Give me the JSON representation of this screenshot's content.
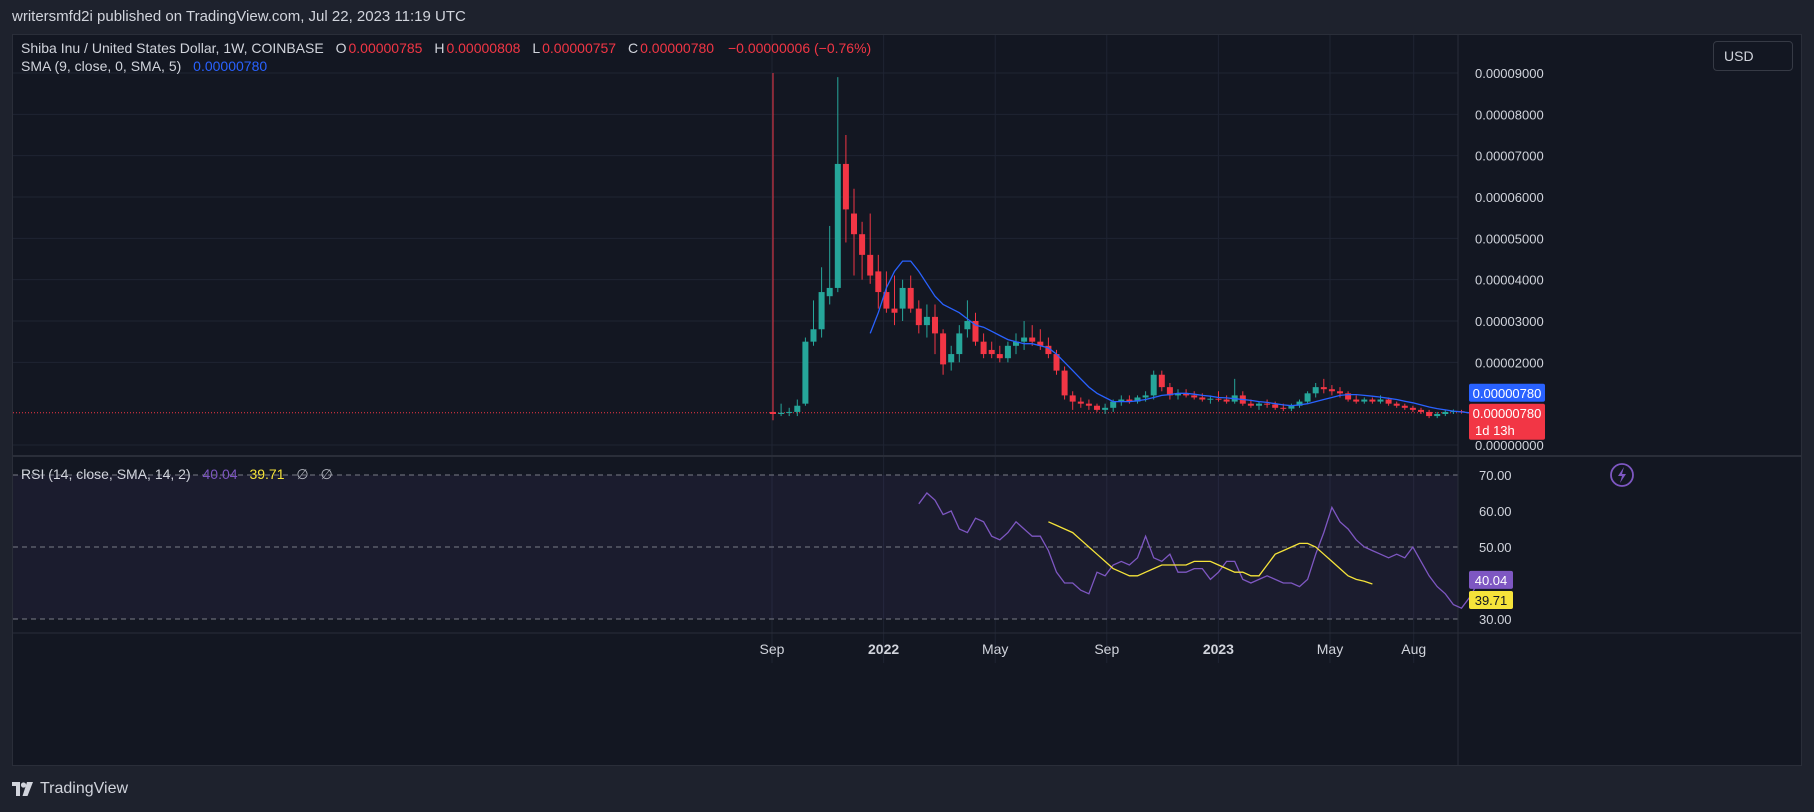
{
  "publisher": "writersmfd2i published on TradingView.com, Jul 22, 2023 11:19 UTC",
  "currency": "USD",
  "footer_brand": "TradingView",
  "colors": {
    "up": "#26a69a",
    "down": "#f23645",
    "sma": "#2962ff",
    "rsi": "#7e57c2",
    "rsi_ma": "#f5e33a",
    "price_line": "#f23645"
  },
  "legend": {
    "symbol": "Shiba Inu / United States Dollar, 1W, COINBASE",
    "o_label": "O",
    "o_value": "0.00000785",
    "h_label": "H",
    "h_value": "0.00000808",
    "l_label": "L",
    "l_value": "0.00000757",
    "c_label": "C",
    "c_value": "0.00000780",
    "change": "−0.00000006 (−0.76%)",
    "sma_label": "SMA (9, close, 0, SMA, 5)",
    "sma_value": "0.00000780",
    "rsi_label": "RSI (14, close, SMA, 14, 2)",
    "rsi_value": "40.04",
    "rsi_ma_value": "39.71",
    "null1": "∅",
    "null2": "∅"
  },
  "badges": {
    "sma_price": "0.00000780",
    "last_price": "0.00000780",
    "countdown": "1d 13h",
    "rsi": "40.04",
    "rsi_ma": "39.71"
  },
  "chart_data": [
    {
      "type": "candlestick",
      "title": "Shiba Inu / United States Dollar, 1W, COINBASE",
      "price_axis_ticks": [
        "0.00009000",
        "0.00008000",
        "0.00007000",
        "0.00006000",
        "0.00005000",
        "0.00004000",
        "0.00003000",
        "0.00002000",
        "0.00000000"
      ],
      "ylim": [
        0,
        9e-05
      ],
      "time_axis_ticks": [
        "Sep",
        "2022",
        "May",
        "Sep",
        "2023",
        "May",
        "Aug"
      ],
      "time_axis_months": [
        8,
        12,
        16,
        20,
        24,
        28,
        31
      ],
      "candles_ohlc_e5": [
        [
          0.8,
          9.0,
          0.6,
          0.75
        ],
        [
          0.75,
          1.0,
          0.7,
          0.78
        ],
        [
          0.78,
          0.9,
          0.7,
          0.8
        ],
        [
          0.8,
          1.1,
          0.7,
          0.95
        ],
        [
          1.0,
          2.6,
          0.95,
          2.5
        ],
        [
          2.5,
          3.5,
          2.4,
          2.8
        ],
        [
          2.8,
          4.3,
          2.6,
          3.7
        ],
        [
          3.6,
          5.3,
          3.4,
          3.8
        ],
        [
          3.8,
          8.9,
          3.7,
          6.8
        ],
        [
          6.8,
          7.5,
          4.9,
          5.7
        ],
        [
          5.6,
          6.2,
          4.1,
          5.1
        ],
        [
          5.1,
          5.4,
          4.0,
          4.6
        ],
        [
          4.6,
          5.6,
          3.9,
          4.1
        ],
        [
          4.2,
          4.6,
          3.3,
          3.7
        ],
        [
          3.7,
          4.2,
          3.2,
          3.3
        ],
        [
          3.3,
          4.1,
          2.9,
          3.2
        ],
        [
          3.3,
          4.0,
          3.0,
          3.8
        ],
        [
          3.8,
          4.1,
          3.2,
          3.3
        ],
        [
          3.3,
          3.5,
          2.7,
          2.9
        ],
        [
          2.9,
          3.4,
          2.6,
          3.1
        ],
        [
          3.1,
          3.4,
          2.2,
          2.7
        ],
        [
          2.7,
          2.8,
          1.7,
          1.95
        ],
        [
          2.0,
          2.4,
          1.8,
          2.2
        ],
        [
          2.2,
          2.9,
          2.0,
          2.7
        ],
        [
          2.8,
          3.5,
          2.6,
          3.0
        ],
        [
          3.0,
          3.2,
          2.4,
          2.5
        ],
        [
          2.5,
          2.7,
          2.1,
          2.2
        ],
        [
          2.3,
          2.5,
          2.1,
          2.2
        ],
        [
          2.2,
          2.4,
          2.0,
          2.1
        ],
        [
          2.1,
          2.5,
          2.0,
          2.4
        ],
        [
          2.4,
          2.7,
          2.2,
          2.5
        ],
        [
          2.5,
          3.0,
          2.3,
          2.6
        ],
        [
          2.6,
          2.9,
          2.4,
          2.5
        ],
        [
          2.5,
          2.8,
          2.3,
          2.4
        ],
        [
          2.4,
          2.6,
          2.1,
          2.2
        ],
        [
          2.2,
          2.3,
          1.7,
          1.8
        ],
        [
          1.8,
          1.9,
          1.1,
          1.2
        ],
        [
          1.2,
          1.3,
          0.85,
          1.05
        ],
        [
          1.05,
          1.15,
          0.9,
          1.0
        ],
        [
          1.0,
          1.1,
          0.85,
          0.95
        ],
        [
          0.95,
          1.0,
          0.8,
          0.85
        ],
        [
          0.85,
          1.0,
          0.75,
          0.9
        ],
        [
          0.9,
          1.1,
          0.8,
          1.05
        ],
        [
          1.05,
          1.2,
          0.95,
          1.1
        ],
        [
          1.1,
          1.2,
          1.0,
          1.05
        ],
        [
          1.05,
          1.2,
          1.0,
          1.15
        ],
        [
          1.15,
          1.3,
          1.05,
          1.2
        ],
        [
          1.2,
          1.8,
          1.1,
          1.7
        ],
        [
          1.7,
          1.8,
          1.3,
          1.4
        ],
        [
          1.4,
          1.5,
          1.1,
          1.2
        ],
        [
          1.2,
          1.35,
          1.1,
          1.25
        ],
        [
          1.25,
          1.35,
          1.15,
          1.2
        ],
        [
          1.2,
          1.3,
          1.1,
          1.15
        ],
        [
          1.15,
          1.25,
          1.05,
          1.1
        ],
        [
          1.1,
          1.2,
          1.0,
          1.12
        ],
        [
          1.12,
          1.3,
          1.05,
          1.1
        ],
        [
          1.1,
          1.2,
          1.0,
          1.05
        ],
        [
          1.05,
          1.6,
          1.0,
          1.2
        ],
        [
          1.2,
          1.3,
          0.95,
          1.0
        ],
        [
          1.0,
          1.1,
          0.9,
          0.95
        ],
        [
          0.95,
          1.05,
          0.85,
          1.0
        ],
        [
          1.0,
          1.1,
          0.9,
          0.98
        ],
        [
          0.98,
          1.05,
          0.85,
          0.9
        ],
        [
          0.9,
          1.0,
          0.82,
          0.88
        ],
        [
          0.88,
          1.0,
          0.82,
          0.95
        ],
        [
          0.95,
          1.1,
          0.9,
          1.05
        ],
        [
          1.05,
          1.3,
          1.0,
          1.25
        ],
        [
          1.25,
          1.5,
          1.15,
          1.4
        ],
        [
          1.4,
          1.6,
          1.25,
          1.35
        ],
        [
          1.35,
          1.45,
          1.2,
          1.3
        ],
        [
          1.3,
          1.4,
          1.15,
          1.25
        ],
        [
          1.25,
          1.3,
          1.05,
          1.1
        ],
        [
          1.1,
          1.2,
          1.0,
          1.05
        ],
        [
          1.05,
          1.15,
          1.0,
          1.1
        ],
        [
          1.1,
          1.15,
          1.0,
          1.05
        ],
        [
          1.05,
          1.2,
          1.0,
          1.1
        ],
        [
          1.1,
          1.15,
          0.95,
          1.0
        ],
        [
          1.0,
          1.05,
          0.9,
          0.95
        ],
        [
          0.95,
          1.0,
          0.85,
          0.9
        ],
        [
          0.9,
          0.95,
          0.8,
          0.85
        ],
        [
          0.85,
          0.9,
          0.75,
          0.8
        ],
        [
          0.8,
          0.85,
          0.65,
          0.7
        ],
        [
          0.7,
          0.8,
          0.65,
          0.75
        ],
        [
          0.75,
          0.85,
          0.7,
          0.8
        ],
        [
          0.8,
          0.86,
          0.75,
          0.82
        ],
        [
          0.82,
          0.85,
          0.76,
          0.79
        ],
        [
          0.79,
          0.81,
          0.76,
          0.78
        ]
      ],
      "sma_e5": [
        null,
        null,
        null,
        null,
        null,
        null,
        null,
        null,
        null,
        null,
        null,
        null,
        2.7,
        3.2,
        3.8,
        4.2,
        4.45,
        4.45,
        4.2,
        3.9,
        3.6,
        3.4,
        3.3,
        3.2,
        3.05,
        2.9,
        2.85,
        2.75,
        2.65,
        2.55,
        2.5,
        2.45,
        2.45,
        2.4,
        2.35,
        2.2,
        2.0,
        1.8,
        1.6,
        1.4,
        1.25,
        1.15,
        1.05,
        1.05,
        1.05,
        1.07,
        1.1,
        1.15,
        1.2,
        1.22,
        1.25,
        1.25,
        1.23,
        1.2,
        1.18,
        1.15,
        1.14,
        1.12,
        1.1,
        1.08,
        1.05,
        1.03,
        1.0,
        0.97,
        0.95,
        0.97,
        1.0,
        1.05,
        1.1,
        1.15,
        1.2,
        1.22,
        1.22,
        1.2,
        1.18,
        1.16,
        1.13,
        1.1,
        1.06,
        1.02,
        0.97,
        0.92,
        0.88,
        0.85,
        0.82,
        0.8,
        0.78
      ]
    },
    {
      "type": "line",
      "title": "RSI (14, close, SMA, 14, 2)",
      "ylim": [
        30,
        70
      ],
      "y_ticks": [
        "70.00",
        "60.00",
        "50.00",
        "30.00"
      ],
      "bands": [
        70,
        50,
        30
      ],
      "series": [
        {
          "name": "RSI",
          "start_index": 18,
          "values": [
            62,
            65,
            63,
            59,
            60,
            55,
            54,
            58,
            57,
            53,
            52,
            54,
            57,
            55,
            53,
            53,
            49,
            43,
            40,
            40,
            38,
            37,
            43,
            42,
            45,
            46,
            45,
            47,
            53,
            47,
            46,
            48,
            43,
            43,
            44,
            44,
            41,
            43,
            46,
            46,
            41,
            40,
            41,
            42,
            41,
            40,
            40,
            39,
            41,
            48,
            54,
            61,
            57,
            55,
            52,
            50,
            49,
            48,
            47,
            48,
            47,
            50,
            46,
            42,
            39,
            37,
            34,
            33,
            36,
            40,
            39,
            40,
            40.04
          ]
        },
        {
          "name": "",
          "start_index": 34,
          "values": [
            57,
            56,
            55,
            54,
            52,
            50,
            48,
            46,
            44,
            43,
            42,
            42,
            43,
            44,
            45,
            45,
            45,
            45,
            46,
            46,
            46,
            45,
            44,
            43,
            43,
            42,
            42,
            45,
            48,
            49,
            50,
            51,
            51,
            50,
            48,
            46,
            44,
            42,
            41,
            40.5,
            39.71
          ]
        }
      ]
    }
  ]
}
